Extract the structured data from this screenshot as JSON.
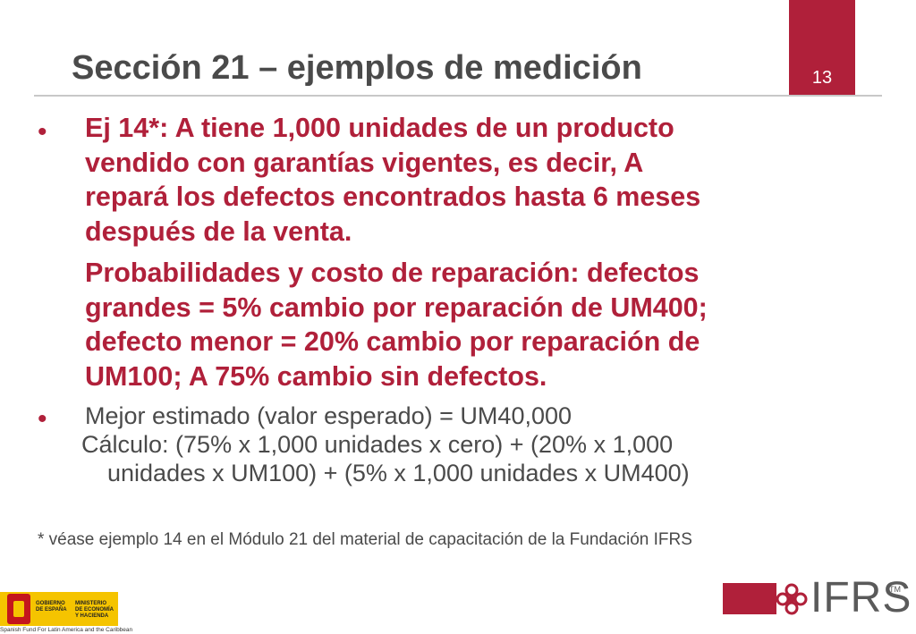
{
  "slide": {
    "title": "Sección 21 – ejemplos de medición",
    "page_number": "13"
  },
  "bullets": {
    "bullet_glyph": "•",
    "example_lines": [
      "Ej 14*: A tiene 1,000 unidades de un producto",
      "vendido con garantías vigentes, es decir, A",
      "repará los defectos encontrados hasta 6 meses",
      "después de la venta."
    ],
    "probability_lines": [
      "Probabilidades y costo de reparación: defectos",
      "grandes = 5% cambio por reparación de UM400;",
      "defecto menor = 20% cambio por reparación de",
      "UM100; A 75% cambio sin defectos."
    ],
    "estimate": "Mejor estimado (valor esperado) = UM40,000",
    "calc_line1": "Cálculo: (75% x 1,000 unidades x cero) + (20% x 1,000",
    "calc_line2": "unidades x UM100) + (5% x 1,000 unidades x UM400)"
  },
  "footnote": "* véase ejemplo 14 en el Módulo 21 del material de capacitación de la Fundación IFRS",
  "logos": {
    "gov_name": "GOBIERNO DE ESPAÑA",
    "ministry": "MINISTERIO DE ECONOMÍA Y HACIENDA",
    "fund_caption": "Spanish Fund For Latin America and the Caribbean",
    "ifrs_wordmark": "IFRS",
    "ifrs_tm": "TM"
  },
  "colors": {
    "accent": "#b0203a",
    "text": "#4a4a4a",
    "gov_yellow": "#f5c400"
  }
}
